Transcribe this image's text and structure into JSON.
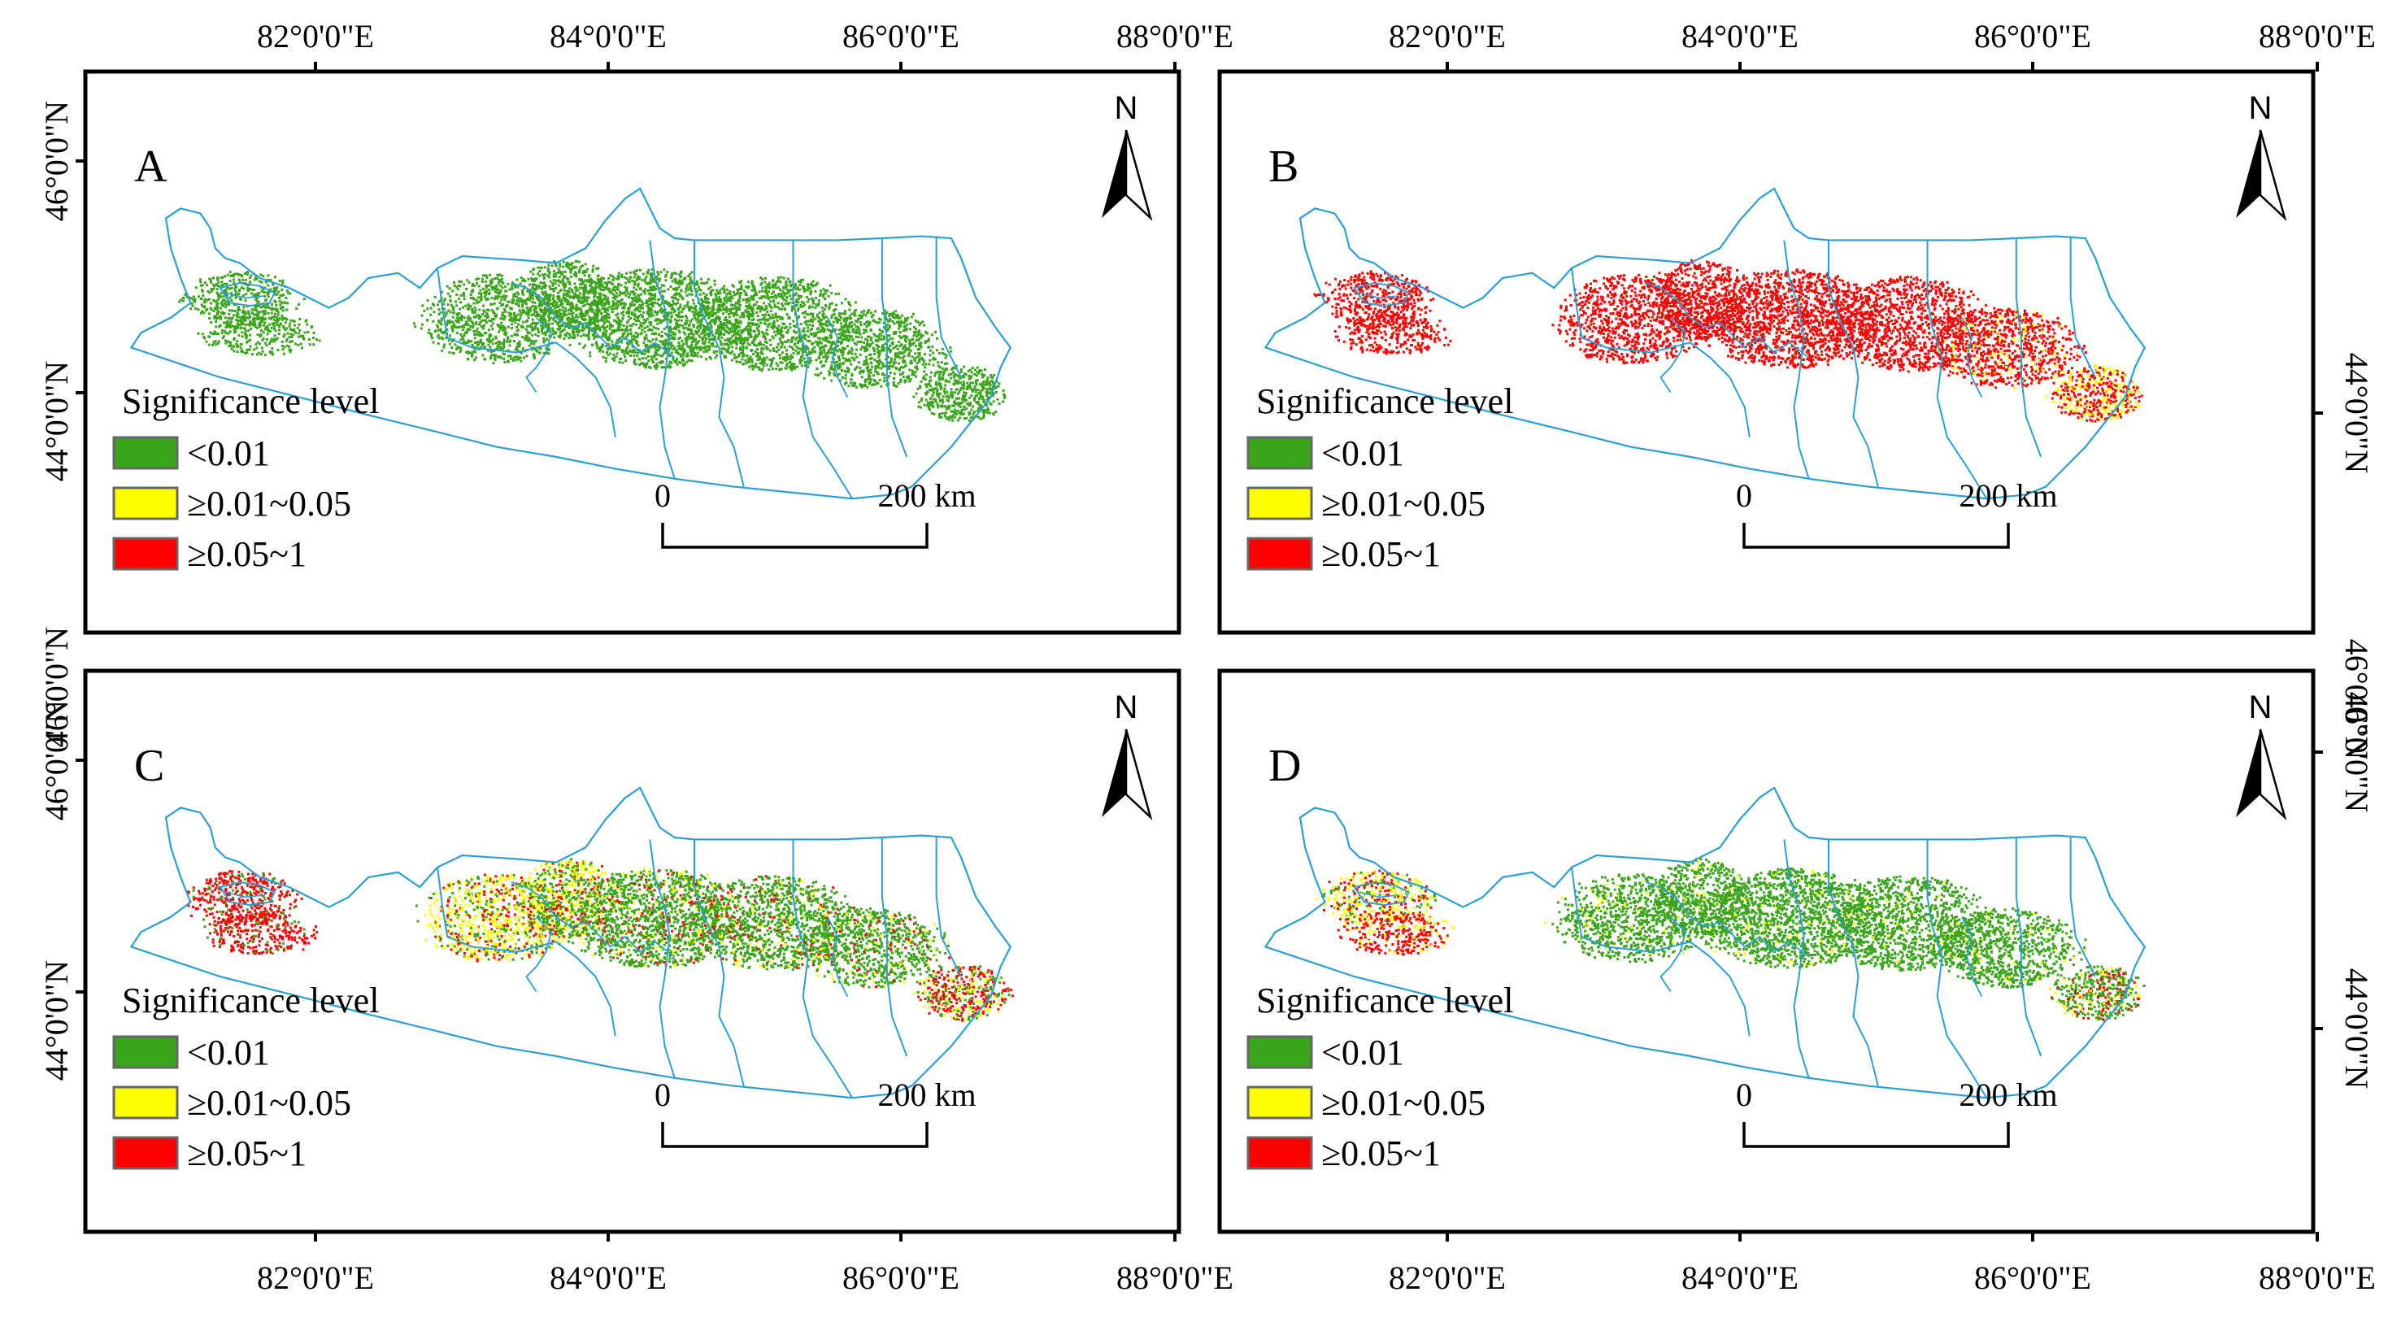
{
  "figure": {
    "panels": [
      {
        "label": "A",
        "left_coords": [
          "46°0'0\"N",
          "44°0'0\"N"
        ],
        "right_coords": [],
        "pattern": "green"
      },
      {
        "label": "B",
        "left_coords": [],
        "right_coords": [
          "44°0'0\"N"
        ],
        "pattern": "red"
      },
      {
        "label": "C",
        "left_coords": [
          "46°0'0\"N",
          "44°0'0\"N"
        ],
        "right_coords": [],
        "pattern": "mixed"
      },
      {
        "label": "D",
        "left_coords": [],
        "right_coords": [
          "46°0'0\"N",
          "44°0'0\"N"
        ],
        "pattern": "green-west"
      }
    ],
    "top_coords_left": [
      "82°0'0\"E",
      "84°0'0\"E",
      "86°0'0\"E",
      "88°0'0\"E"
    ],
    "top_coords_right": [
      "82°0'0\"E",
      "84°0'0\"E",
      "86°0'0\"E",
      "88°0'0\"E"
    ],
    "bottom_coords_left": [
      "82°0'0\"E",
      "84°0'0\"E",
      "86°0'0\"E",
      "88°0'0\"E"
    ],
    "bottom_coords_right": [
      "82°0'0\"E",
      "84°0'0\"E",
      "86°0'0\"E",
      "88°0'0\"E"
    ],
    "extra_left_coord": "46°0'0\"N",
    "extra_right_coord": "46°0'0\"N"
  },
  "legend": {
    "title": "Significance level",
    "items": [
      {
        "label": "<0.01",
        "color": "#3aa51a"
      },
      {
        "label": "≥0.01~0.05",
        "color": "#ffff00"
      },
      {
        "label": "≥0.05~1",
        "color": "#ff0000"
      }
    ]
  },
  "scalebar": {
    "start": "0",
    "end": "200 km"
  },
  "north_arrow": {
    "label": "N"
  },
  "colors": {
    "boundary": "#2a9fd6",
    "green": "#3aa51a",
    "yellow": "#ffff00",
    "red": "#ff0000",
    "frame": "#000000"
  }
}
